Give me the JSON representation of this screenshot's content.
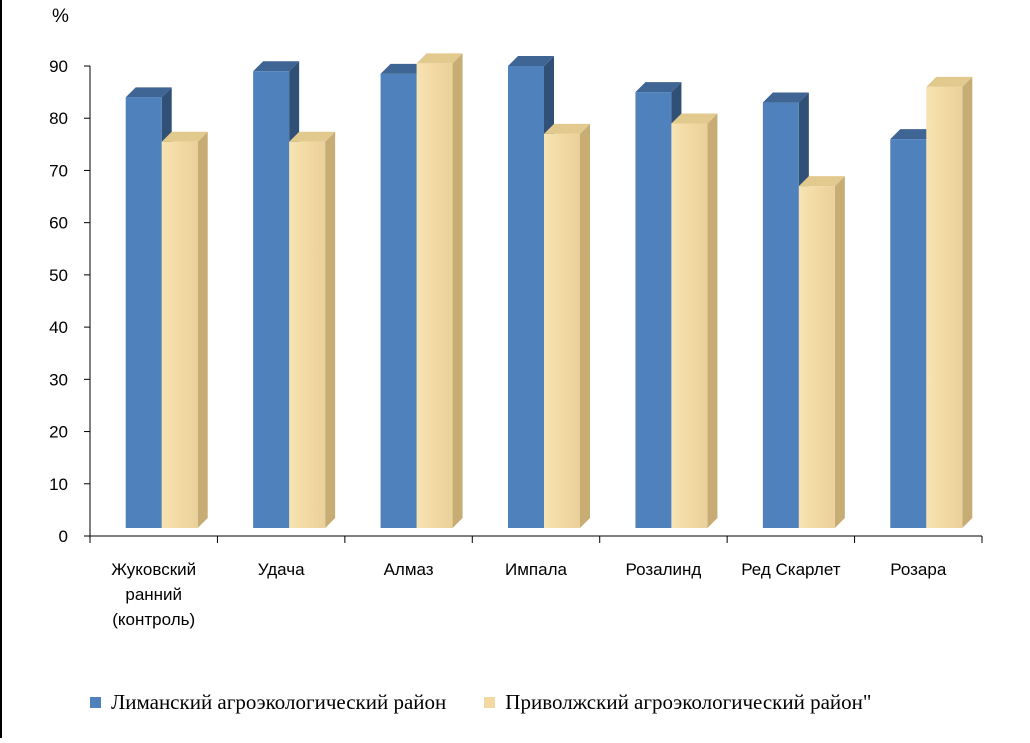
{
  "chart_data": {
    "type": "bar",
    "ylabel": "%",
    "ylim": [
      0,
      90
    ],
    "yticks": [
      0,
      10,
      20,
      30,
      40,
      50,
      60,
      70,
      80,
      90
    ],
    "categories": [
      [
        "Жуковский",
        "ранний",
        "(контроль)"
      ],
      [
        "Удача"
      ],
      [
        "Алмаз"
      ],
      [
        "Импала"
      ],
      [
        "Розалинд"
      ],
      [
        "Ред Скарлет"
      ],
      [
        "Розара"
      ]
    ],
    "series": [
      {
        "name": "Лиманский агроэкологический район",
        "color": "#4f81bd",
        "values": [
          84,
          89,
          88.5,
          90,
          85,
          83,
          76
        ]
      },
      {
        "name": "Приволжский агроэкологический район\"",
        "color": "#f5dfa8",
        "values": [
          75.5,
          75.5,
          90.5,
          77,
          79,
          67,
          86
        ]
      }
    ],
    "grid": false,
    "legend_position": "bottom",
    "style": "3d"
  }
}
